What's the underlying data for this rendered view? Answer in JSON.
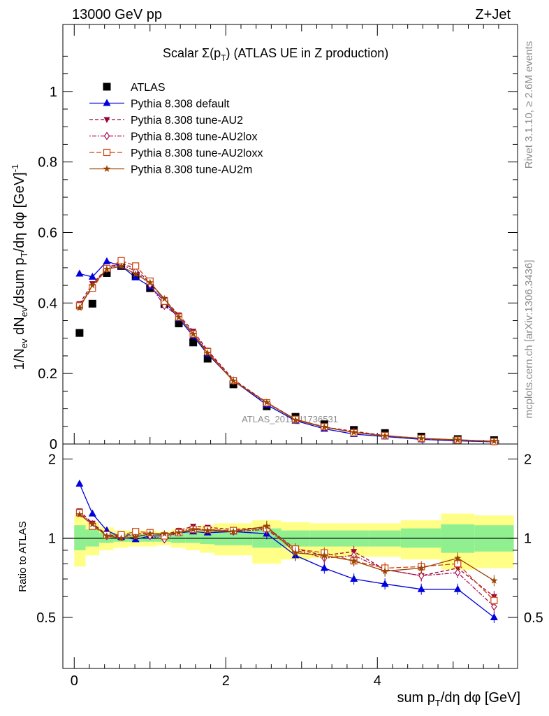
{
  "header": {
    "left": "13000 GeV pp",
    "right": "Z+Jet"
  },
  "plot_title": {
    "prefix": "Scalar Σ(p",
    "sub_T": "T",
    "suffix": ") (ATLAS UE in Z production)"
  },
  "watermark": "ATLAS_2019_I1736531",
  "side_labels": {
    "rivet": "Rivet 3.1.10, ≥ 2.6M events",
    "mcplots": "mcplots.cern.ch [arXiv:1306.3436]"
  },
  "axes": {
    "ylabel_main": "1/N_ev dN_ev/dsum p_T/dη dφ [GeV]^-1",
    "ylabel_ratio": "Ratio to ATLAS",
    "xlabel": "sum p_T/dη dφ [GeV]"
  },
  "chart_data": [
    {
      "type": "line",
      "panel": "main",
      "xlim": [
        -0.15,
        5.85
      ],
      "ylim": [
        0,
        1.19
      ],
      "yticks": [
        "0",
        "0.2",
        "0.4",
        "0.6",
        "0.8",
        "1"
      ],
      "legend_placement": "top-left",
      "x": [
        0.07,
        0.24,
        0.43,
        0.62,
        0.81,
        1.0,
        1.19,
        1.38,
        1.57,
        1.76,
        2.1,
        2.54,
        2.92,
        3.3,
        3.69,
        4.1,
        4.58,
        5.06,
        5.54
      ],
      "series": [
        {
          "name": "ATLAS",
          "key": "atlas",
          "color": "#000000",
          "marker": "square",
          "values": [
            0.315,
            0.398,
            0.485,
            0.505,
            0.476,
            0.442,
            0.397,
            0.342,
            0.288,
            0.242,
            0.169,
            0.107,
            0.077,
            0.056,
            0.04,
            0.031,
            0.021,
            0.014,
            0.011
          ]
        },
        {
          "name": "Pythia 8.308 default",
          "key": "default",
          "color": "#0000dd",
          "dash": "",
          "marker": "triangle",
          "values": [
            0.483,
            0.474,
            0.518,
            0.505,
            0.472,
            0.447,
            0.405,
            0.356,
            0.306,
            0.255,
            0.18,
            0.111,
            0.066,
            0.043,
            0.028,
            0.021,
            0.013,
            0.009,
            0.006
          ]
        },
        {
          "name": "Pythia 8.308 tune-AU2",
          "key": "au2",
          "color": "#990033",
          "dash": "5,3",
          "marker": "invtriangle",
          "values": [
            0.398,
            0.455,
            0.498,
            0.514,
            0.496,
            0.457,
            0.41,
            0.366,
            0.32,
            0.266,
            0.183,
            0.118,
            0.07,
            0.048,
            0.036,
            0.024,
            0.015,
            0.011,
            0.008
          ]
        },
        {
          "name": "Pythia 8.308 tune-AU2lox",
          "key": "au2lox",
          "color": "#aa1155",
          "dash": "2,2,6,2",
          "marker": "diamond",
          "values": [
            0.392,
            0.448,
            0.497,
            0.51,
            0.49,
            0.452,
            0.392,
            0.362,
            0.314,
            0.262,
            0.179,
            0.116,
            0.069,
            0.047,
            0.034,
            0.024,
            0.015,
            0.011,
            0.007
          ]
        },
        {
          "name": "Pythia 8.308 tune-AU2loxx",
          "key": "au2loxx",
          "color": "#cc4411",
          "dash": "7,3",
          "marker": "opensquare",
          "values": [
            0.392,
            0.442,
            0.498,
            0.52,
            0.505,
            0.462,
            0.405,
            0.36,
            0.312,
            0.262,
            0.18,
            0.117,
            0.07,
            0.049,
            0.032,
            0.024,
            0.016,
            0.011,
            0.007
          ]
        },
        {
          "name": "Pythia 8.308 tune-AU2m",
          "key": "au2m",
          "color": "#994400",
          "dash": "",
          "marker": "star",
          "values": [
            0.386,
            0.45,
            0.496,
            0.504,
            0.482,
            0.458,
            0.412,
            0.36,
            0.312,
            0.258,
            0.179,
            0.118,
            0.068,
            0.048,
            0.033,
            0.023,
            0.016,
            0.012,
            0.008
          ]
        }
      ]
    },
    {
      "type": "line",
      "panel": "ratio",
      "xlim": [
        -0.15,
        5.85
      ],
      "ylim": [
        0.32,
        2.28
      ],
      "yticks": [
        "0.5",
        "1",
        "2"
      ],
      "xticks": [
        "0",
        "2",
        "4"
      ],
      "bin_edges": [
        0,
        0.15,
        0.33,
        0.52,
        0.71,
        0.9,
        1.09,
        1.28,
        1.47,
        1.66,
        1.85,
        2.35,
        2.73,
        3.11,
        3.5,
        3.89,
        4.31,
        4.84,
        5.28,
        5.8
      ],
      "band_inner": [
        [
          0.9,
          1.12
        ],
        [
          0.93,
          1.08
        ],
        [
          0.96,
          1.05
        ],
        [
          0.97,
          1.04
        ],
        [
          0.97,
          1.04
        ],
        [
          0.97,
          1.04
        ],
        [
          0.97,
          1.04
        ],
        [
          0.96,
          1.05
        ],
        [
          0.96,
          1.05
        ],
        [
          0.95,
          1.06
        ],
        [
          0.94,
          1.07
        ],
        [
          0.92,
          1.09
        ],
        [
          0.93,
          1.07
        ],
        [
          0.93,
          1.07
        ],
        [
          0.93,
          1.07
        ],
        [
          0.93,
          1.07
        ],
        [
          0.92,
          1.09
        ],
        [
          0.88,
          1.13
        ],
        [
          0.89,
          1.12
        ]
      ],
      "band_outer": [
        [
          0.78,
          1.22
        ],
        [
          0.86,
          1.15
        ],
        [
          0.9,
          1.1
        ],
        [
          0.92,
          1.07
        ],
        [
          0.93,
          1.07
        ],
        [
          0.93,
          1.07
        ],
        [
          0.94,
          1.06
        ],
        [
          0.92,
          1.08
        ],
        [
          0.9,
          1.1
        ],
        [
          0.88,
          1.12
        ],
        [
          0.86,
          1.14
        ],
        [
          0.8,
          1.17
        ],
        [
          0.83,
          1.15
        ],
        [
          0.84,
          1.14
        ],
        [
          0.85,
          1.14
        ],
        [
          0.85,
          1.14
        ],
        [
          0.83,
          1.17
        ],
        [
          0.76,
          1.24
        ],
        [
          0.77,
          1.22
        ]
      ],
      "x": [
        0.07,
        0.24,
        0.43,
        0.62,
        0.81,
        1.0,
        1.19,
        1.38,
        1.57,
        1.76,
        2.1,
        2.54,
        2.92,
        3.3,
        3.69,
        4.1,
        4.58,
        5.06,
        5.54
      ],
      "series": [
        {
          "name": "Pythia 8.308 default",
          "key": "default",
          "color": "#0000dd",
          "dash": "",
          "marker": "triangle",
          "values": [
            1.61,
            1.24,
            1.07,
            1.01,
            0.99,
            1.02,
            1.02,
            1.05,
            1.06,
            1.05,
            1.06,
            1.04,
            0.86,
            0.77,
            0.7,
            0.67,
            0.64,
            0.64,
            0.5
          ]
        },
        {
          "name": "Pythia 8.308 tune-AU2",
          "key": "au2",
          "color": "#990033",
          "dash": "5,3",
          "marker": "invtriangle",
          "values": [
            1.27,
            1.14,
            1.03,
            1.02,
            1.04,
            1.04,
            1.03,
            1.07,
            1.11,
            1.1,
            1.08,
            1.1,
            0.91,
            0.86,
            0.89,
            0.76,
            0.72,
            0.77,
            0.6
          ]
        },
        {
          "name": "Pythia 8.308 tune-AU2lox",
          "key": "au2lox",
          "color": "#aa1155",
          "dash": "2,2,6,2",
          "marker": "diamond",
          "values": [
            1.25,
            1.13,
            1.02,
            1.01,
            1.03,
            1.02,
            0.99,
            1.06,
            1.09,
            1.08,
            1.06,
            1.08,
            0.9,
            0.84,
            0.86,
            0.76,
            0.72,
            0.74,
            0.55
          ]
        },
        {
          "name": "Pythia 8.308 tune-AU2loxx",
          "key": "au2loxx",
          "color": "#cc4411",
          "dash": "7,3",
          "marker": "opensquare",
          "values": [
            1.25,
            1.11,
            1.03,
            1.03,
            1.06,
            1.05,
            1.02,
            1.05,
            1.08,
            1.08,
            1.07,
            1.09,
            0.91,
            0.88,
            0.82,
            0.77,
            0.78,
            0.8,
            0.58
          ]
        },
        {
          "name": "Pythia 8.308 tune-AU2m",
          "key": "au2m",
          "color": "#994400",
          "dash": "",
          "marker": "star",
          "values": [
            1.23,
            1.13,
            1.02,
            1.0,
            1.01,
            1.04,
            1.04,
            1.05,
            1.08,
            1.07,
            1.06,
            1.11,
            0.88,
            0.86,
            0.82,
            0.75,
            0.77,
            0.84,
            0.69
          ]
        }
      ]
    }
  ]
}
